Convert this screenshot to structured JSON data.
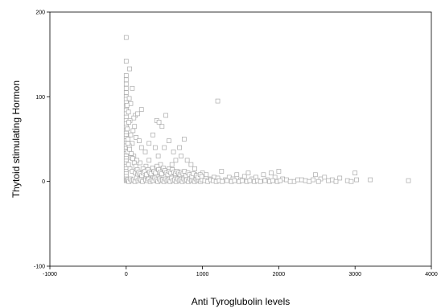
{
  "chart_data": {
    "type": "scatter",
    "title": "",
    "xlabel": "Anti Tyroglubolin levels",
    "ylabel": "Thytoid stimulating Hormon",
    "xlim": [
      -1000,
      4000
    ],
    "ylim": [
      -100,
      200
    ],
    "x_ticks": [
      "-1000",
      "0",
      "1000",
      "2000",
      "3000",
      "4000"
    ],
    "y_ticks": [
      "-100",
      "0",
      "100",
      "200"
    ],
    "x_tick_values": [
      -1000,
      0,
      1000,
      2000,
      3000,
      4000
    ],
    "y_tick_values": [
      -100,
      0,
      100,
      200
    ],
    "grid": false,
    "legend": "none",
    "marker": "open-square",
    "marker_color": "#a9a9a9",
    "series": [
      {
        "points": [
          [
            0,
            170
          ],
          [
            0,
            142
          ],
          [
            0,
            125
          ],
          [
            0,
            120
          ],
          [
            0,
            115
          ],
          [
            0,
            110
          ],
          [
            0,
            105
          ],
          [
            0,
            100
          ],
          [
            0,
            97
          ],
          [
            0,
            93
          ],
          [
            0,
            88
          ],
          [
            0,
            84
          ],
          [
            0,
            80
          ],
          [
            0,
            76
          ],
          [
            0,
            72
          ],
          [
            0,
            68
          ],
          [
            0,
            64
          ],
          [
            0,
            60
          ],
          [
            0,
            57
          ],
          [
            0,
            54
          ],
          [
            0,
            51
          ],
          [
            0,
            48
          ],
          [
            0,
            45
          ],
          [
            0,
            42
          ],
          [
            0,
            39
          ],
          [
            0,
            36
          ],
          [
            0,
            33
          ],
          [
            0,
            30
          ],
          [
            0,
            27
          ],
          [
            0,
            24
          ],
          [
            0,
            21
          ],
          [
            0,
            18
          ],
          [
            0,
            15
          ],
          [
            0,
            12
          ],
          [
            0,
            9
          ],
          [
            0,
            6
          ],
          [
            0,
            3
          ],
          [
            0,
            1
          ],
          [
            45,
            133
          ],
          [
            80,
            110
          ],
          [
            40,
            98
          ],
          [
            60,
            92
          ],
          [
            30,
            82
          ],
          [
            120,
            78
          ],
          [
            100,
            75
          ],
          [
            50,
            72
          ],
          [
            200,
            85
          ],
          [
            150,
            80
          ],
          [
            110,
            65
          ],
          [
            90,
            60
          ],
          [
            60,
            55
          ],
          [
            130,
            52
          ],
          [
            170,
            48
          ],
          [
            80,
            45
          ],
          [
            40,
            42
          ],
          [
            200,
            40
          ],
          [
            250,
            35
          ],
          [
            300,
            45
          ],
          [
            350,
            55
          ],
          [
            400,
            72
          ],
          [
            430,
            70
          ],
          [
            520,
            78
          ],
          [
            470,
            65
          ],
          [
            500,
            40
          ],
          [
            380,
            40
          ],
          [
            560,
            48
          ],
          [
            620,
            35
          ],
          [
            700,
            40
          ],
          [
            760,
            50
          ],
          [
            720,
            30
          ],
          [
            800,
            25
          ],
          [
            850,
            20
          ],
          [
            900,
            15
          ],
          [
            650,
            25
          ],
          [
            600,
            20
          ],
          [
            560,
            15
          ],
          [
            500,
            12
          ],
          [
            450,
            20
          ],
          [
            420,
            30
          ],
          [
            300,
            25
          ],
          [
            260,
            18
          ],
          [
            220,
            15
          ],
          [
            180,
            22
          ],
          [
            140,
            25
          ],
          [
            100,
            30
          ],
          [
            70,
            28
          ],
          [
            30,
            20
          ],
          [
            50,
            15
          ],
          [
            80,
            12
          ],
          [
            120,
            10
          ],
          [
            150,
            8
          ],
          [
            200,
            6
          ],
          [
            250,
            5
          ],
          [
            300,
            8
          ],
          [
            350,
            4
          ],
          [
            400,
            6
          ],
          [
            450,
            3
          ],
          [
            550,
            5
          ],
          [
            600,
            8
          ],
          [
            650,
            4
          ],
          [
            700,
            6
          ],
          [
            750,
            2
          ],
          [
            800,
            5
          ],
          [
            850,
            3
          ],
          [
            900,
            8
          ],
          [
            950,
            2
          ],
          [
            1000,
            10
          ],
          [
            1050,
            8
          ],
          [
            1100,
            3
          ],
          [
            1150,
            5
          ],
          [
            1200,
            95
          ],
          [
            1200,
            4
          ],
          [
            1250,
            12
          ],
          [
            1300,
            2
          ],
          [
            1350,
            5
          ],
          [
            1400,
            3
          ],
          [
            1450,
            8
          ],
          [
            1500,
            2
          ],
          [
            1550,
            6
          ],
          [
            1600,
            10
          ],
          [
            1650,
            3
          ],
          [
            1700,
            5
          ],
          [
            1800,
            8
          ],
          [
            1850,
            2
          ],
          [
            1900,
            10
          ],
          [
            1950,
            5
          ],
          [
            2000,
            12
          ],
          [
            2050,
            3
          ],
          [
            2100,
            2
          ],
          [
            2200,
            0
          ],
          [
            2250,
            2
          ],
          [
            2300,
            2
          ],
          [
            2350,
            1
          ],
          [
            2450,
            2
          ],
          [
            2480,
            8
          ],
          [
            2550,
            3
          ],
          [
            2600,
            5
          ],
          [
            2700,
            2
          ],
          [
            2800,
            4
          ],
          [
            2900,
            1
          ],
          [
            3000,
            10
          ],
          [
            3020,
            2
          ],
          [
            3200,
            2
          ],
          [
            3700,
            1
          ],
          [
            10,
            1
          ],
          [
            20,
            2
          ],
          [
            35,
            0
          ],
          [
            55,
            3
          ],
          [
            75,
            1
          ],
          [
            95,
            2
          ],
          [
            115,
            0
          ],
          [
            135,
            4
          ],
          [
            155,
            1
          ],
          [
            175,
            3
          ],
          [
            195,
            2
          ],
          [
            215,
            0
          ],
          [
            235,
            5
          ],
          [
            255,
            2
          ],
          [
            275,
            1
          ],
          [
            295,
            3
          ],
          [
            315,
            0
          ],
          [
            335,
            2
          ],
          [
            355,
            1
          ],
          [
            375,
            4
          ],
          [
            395,
            2
          ],
          [
            415,
            0
          ],
          [
            435,
            3
          ],
          [
            455,
            1
          ],
          [
            475,
            2
          ],
          [
            495,
            0
          ],
          [
            515,
            3
          ],
          [
            535,
            1
          ],
          [
            555,
            2
          ],
          [
            575,
            0
          ],
          [
            595,
            4
          ],
          [
            615,
            1
          ],
          [
            635,
            2
          ],
          [
            655,
            0
          ],
          [
            675,
            3
          ],
          [
            695,
            1
          ],
          [
            715,
            2
          ],
          [
            735,
            0
          ],
          [
            755,
            3
          ],
          [
            775,
            1
          ],
          [
            795,
            2
          ],
          [
            815,
            0
          ],
          [
            835,
            3
          ],
          [
            855,
            1
          ],
          [
            875,
            2
          ],
          [
            895,
            0
          ],
          [
            915,
            3
          ],
          [
            935,
            1
          ],
          [
            955,
            2
          ],
          [
            975,
            0
          ],
          [
            995,
            2
          ],
          [
            1030,
            1
          ],
          [
            1070,
            0
          ],
          [
            1110,
            2
          ],
          [
            1140,
            1
          ],
          [
            1180,
            0
          ],
          [
            1220,
            1
          ],
          [
            1260,
            0
          ],
          [
            1320,
            1
          ],
          [
            1380,
            0
          ],
          [
            1420,
            1
          ],
          [
            1480,
            0
          ],
          [
            1520,
            1
          ],
          [
            1580,
            0
          ],
          [
            1620,
            1
          ],
          [
            1680,
            0
          ],
          [
            1720,
            1
          ],
          [
            1760,
            0
          ],
          [
            1820,
            1
          ],
          [
            1880,
            0
          ],
          [
            1920,
            1
          ],
          [
            1980,
            0
          ],
          [
            2020,
            1
          ],
          [
            2150,
            0
          ],
          [
            2400,
            0
          ],
          [
            2520,
            0
          ],
          [
            2650,
            1
          ],
          [
            2750,
            0
          ],
          [
            2950,
            0
          ],
          [
            20,
            35
          ],
          [
            25,
            50
          ],
          [
            15,
            62
          ],
          [
            35,
            70
          ],
          [
            10,
            90
          ],
          [
            25,
            45
          ],
          [
            45,
            38
          ],
          [
            65,
            33
          ],
          [
            85,
            27
          ],
          [
            105,
            22
          ],
          [
            125,
            18
          ],
          [
            145,
            14
          ],
          [
            165,
            11
          ],
          [
            185,
            9
          ],
          [
            205,
            7
          ],
          [
            225,
            10
          ],
          [
            245,
            12
          ],
          [
            265,
            8
          ],
          [
            285,
            14
          ],
          [
            305,
            11
          ],
          [
            325,
            9
          ],
          [
            345,
            16
          ],
          [
            365,
            12
          ],
          [
            385,
            10
          ],
          [
            405,
            18
          ],
          [
            425,
            14
          ],
          [
            445,
            11
          ],
          [
            465,
            9
          ],
          [
            485,
            16
          ],
          [
            505,
            13
          ],
          [
            525,
            10
          ],
          [
            545,
            8
          ],
          [
            565,
            12
          ],
          [
            585,
            10
          ],
          [
            605,
            14
          ],
          [
            625,
            11
          ],
          [
            645,
            9
          ],
          [
            665,
            12
          ],
          [
            685,
            10
          ],
          [
            705,
            8
          ],
          [
            725,
            11
          ],
          [
            745,
            9
          ],
          [
            765,
            12
          ],
          [
            785,
            7
          ],
          [
            810,
            10
          ],
          [
            830,
            8
          ],
          [
            860,
            6
          ],
          [
            880,
            9
          ],
          [
            920,
            7
          ],
          [
            940,
            5
          ],
          [
            970,
            8
          ],
          [
            990,
            6
          ]
        ]
      }
    ]
  }
}
